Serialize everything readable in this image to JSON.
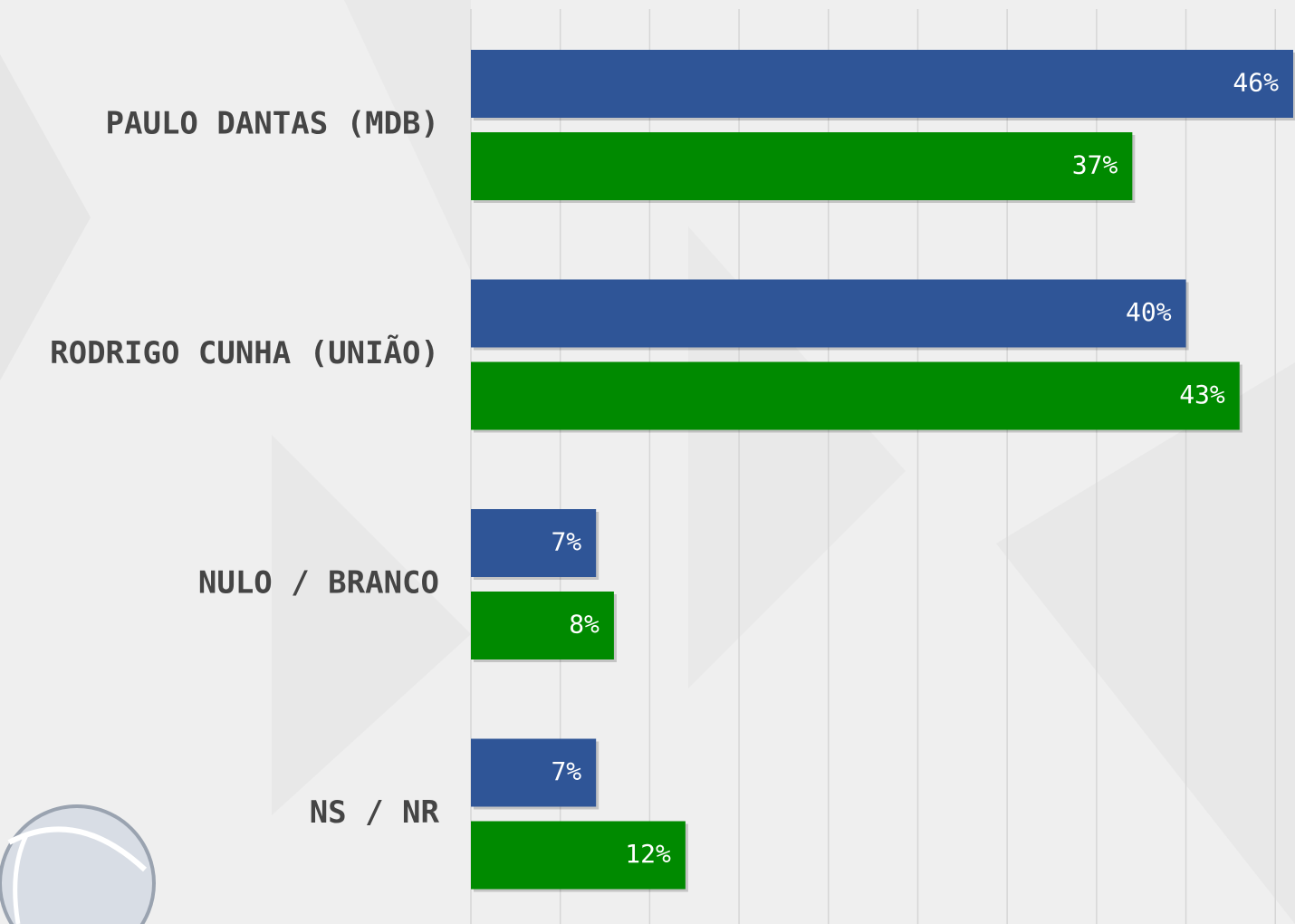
{
  "chart_data": {
    "type": "bar",
    "orientation": "horizontal",
    "categories": [
      "PAULO DANTAS (MDB)",
      "RODRIGO CUNHA (UNIÃO)",
      "NULO / BRANCO",
      "NS / NR"
    ],
    "series": [
      {
        "color": "#2f5597",
        "values": [
          46,
          40,
          7,
          7
        ],
        "value_labels": [
          "46%",
          "40%",
          "7%",
          "7%"
        ]
      },
      {
        "color": "#008a00",
        "values": [
          37,
          43,
          8,
          12
        ],
        "value_labels": [
          "37%",
          "43%",
          "8%",
          "12%"
        ]
      }
    ],
    "xlim": [
      0,
      46
    ],
    "xticks": [
      0,
      5,
      10,
      15,
      20,
      25,
      30,
      35,
      40,
      45
    ],
    "grid": true
  }
}
